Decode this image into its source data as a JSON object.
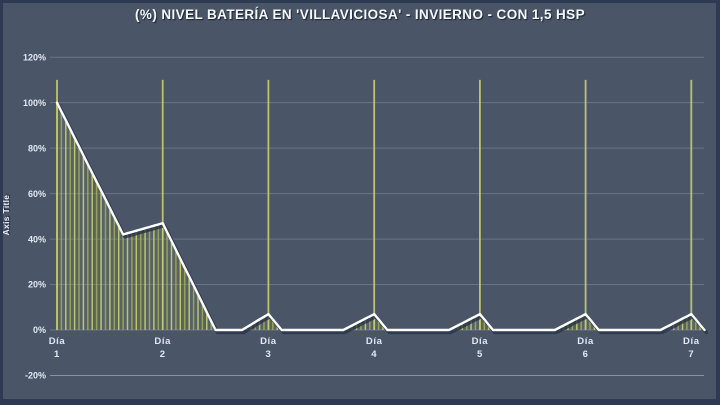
{
  "window": {
    "background_color": "#4a5668",
    "border_color": "#2e3a52"
  },
  "chart_data": {
    "type": "bar",
    "subtype": "hourly-bars-with-line-overlay",
    "title": "(%) NIVEL BATERÍA EN 'VILLAVICIOSA' - INVIERNO - CON 1,5 HSP",
    "ylabel": "Axis Title",
    "xlabel": "",
    "legend": "none",
    "grid": "horizontal",
    "x_unit": "hour",
    "hours_per_day": 24,
    "ylim": [
      -20,
      120
    ],
    "y_ticks": [
      {
        "value": 120,
        "label": "120%"
      },
      {
        "value": 100,
        "label": "100%"
      },
      {
        "value": 80,
        "label": "80%"
      },
      {
        "value": 60,
        "label": "60%"
      },
      {
        "value": 40,
        "label": "40%"
      },
      {
        "value": 20,
        "label": "20%"
      },
      {
        "value": 0,
        "label": "0%"
      },
      {
        "value": -20,
        "label": "-20%"
      }
    ],
    "x_ticks": [
      {
        "line1": "Día",
        "line2": "1",
        "hour": 0
      },
      {
        "line1": "Día",
        "line2": "2",
        "hour": 24
      },
      {
        "line1": "Día",
        "line2": "3",
        "hour": 48
      },
      {
        "line1": "Día",
        "line2": "4",
        "hour": 72
      },
      {
        "line1": "Día",
        "line2": "5",
        "hour": 96
      },
      {
        "line1": "Día",
        "line2": "6",
        "hour": 120
      },
      {
        "line1": "Día",
        "line2": "7",
        "hour": 144
      }
    ],
    "day_change_spikes": {
      "hours": [
        0,
        24,
        48,
        72,
        96,
        120,
        144
      ],
      "value": 110
    },
    "battery_level_pct_by_hour": [
      100,
      96.1,
      92.3,
      88.4,
      84.5,
      80.7,
      76.8,
      72.9,
      69.1,
      65.2,
      61.3,
      57.5,
      53.6,
      49.7,
      45.9,
      42,
      42.6,
      43.1,
      43.7,
      44.2,
      44.8,
      45.3,
      45.9,
      46.4,
      47,
      43.1,
      39.2,
      35.3,
      31.3,
      27.4,
      23.5,
      19.6,
      15.7,
      11.8,
      7.8,
      3.9,
      0,
      0,
      0,
      0,
      0,
      0,
      0,
      1.2,
      2.3,
      3.5,
      4.7,
      5.8,
      7,
      4.7,
      2.3,
      0,
      0,
      0,
      0,
      0,
      0,
      0,
      0,
      0,
      0,
      0,
      0,
      0,
      0,
      0,
      1,
      2,
      3,
      4,
      5,
      6,
      7,
      4.7,
      2.3,
      0,
      0,
      0,
      0,
      0,
      0,
      0,
      0,
      0,
      0,
      0,
      0,
      0,
      0,
      0,
      1,
      2,
      3,
      4,
      5,
      6,
      7,
      4.7,
      2.3,
      0,
      0,
      0,
      0,
      0,
      0,
      0,
      0,
      0,
      0,
      0,
      0,
      0,
      0,
      0,
      1,
      2,
      3,
      4,
      5,
      6,
      7,
      4.7,
      2.3,
      0,
      0,
      0,
      0,
      0,
      0,
      0,
      0,
      0,
      0,
      0,
      0,
      0,
      0,
      0,
      1,
      2,
      3,
      4,
      5,
      6,
      7,
      4.7,
      2.3,
      0
    ],
    "colors": {
      "bar": "#c3c96a",
      "bar_alt": "#aab156",
      "spike": "#c3c96a",
      "line": "#ffffff",
      "line_shadow": "#273349",
      "gridline": "#9aa7ba",
      "axis_text": "#e2e8f1",
      "area_tint": "#9aa35a"
    }
  }
}
